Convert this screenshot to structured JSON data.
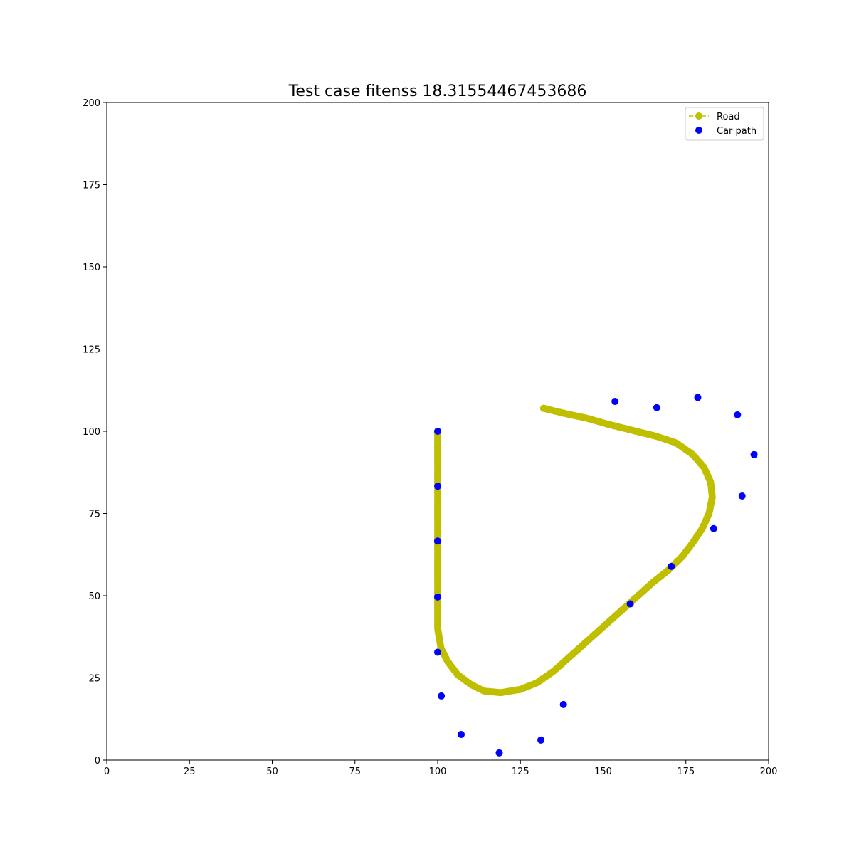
{
  "chart_data": {
    "type": "scatter",
    "title": "Test case fitenss 18.31554467453686",
    "xlabel": "",
    "ylabel": "",
    "xlim": [
      0,
      200
    ],
    "ylim": [
      0,
      200
    ],
    "xticks": [
      0,
      25,
      50,
      75,
      100,
      125,
      150,
      175,
      200
    ],
    "yticks": [
      0,
      25,
      50,
      75,
      100,
      125,
      150,
      175,
      200
    ],
    "grid": false,
    "legend_position": "upper right",
    "series": [
      {
        "name": "Road",
        "style": "dashed-line-with-markers",
        "color": "#bfbf00",
        "anchors": [
          [
            100,
            100
          ],
          [
            100,
            60
          ],
          [
            100,
            40
          ],
          [
            101,
            34
          ],
          [
            103,
            30
          ],
          [
            106,
            26
          ],
          [
            110,
            23
          ],
          [
            114,
            21
          ],
          [
            119,
            20.5
          ],
          [
            125,
            21.5
          ],
          [
            130,
            23.5
          ],
          [
            135,
            27
          ],
          [
            140,
            31.5
          ],
          [
            145,
            36
          ],
          [
            150,
            40.5
          ],
          [
            155,
            45
          ],
          [
            160,
            49.5
          ],
          [
            165,
            54
          ],
          [
            170,
            58
          ],
          [
            174,
            62
          ],
          [
            177,
            66
          ],
          [
            180,
            70.5
          ],
          [
            182,
            75
          ],
          [
            183,
            80
          ],
          [
            182.5,
            84.5
          ],
          [
            180.5,
            89
          ],
          [
            177,
            93
          ],
          [
            172,
            96.5
          ],
          [
            166,
            98.5
          ],
          [
            160,
            100
          ],
          [
            152,
            102
          ],
          [
            145,
            104
          ],
          [
            138,
            105.5
          ],
          [
            132,
            107
          ]
        ]
      },
      {
        "name": "Car path",
        "style": "markers",
        "color": "#0000ff",
        "points": [
          [
            100,
            100
          ],
          [
            100,
            83.3
          ],
          [
            100,
            66.6
          ],
          [
            100,
            49.6
          ],
          [
            100,
            32.8
          ],
          [
            101.1,
            19.5
          ],
          [
            107.1,
            7.8
          ],
          [
            118.6,
            2.2
          ],
          [
            131.2,
            6.1
          ],
          [
            138,
            16.9
          ],
          [
            158.2,
            47.5
          ],
          [
            170.6,
            58.9
          ],
          [
            183.4,
            70.4
          ],
          [
            192,
            80.3
          ],
          [
            195.6,
            92.9
          ],
          [
            190.6,
            105
          ],
          [
            178.6,
            110.3
          ],
          [
            166.2,
            107.2
          ],
          [
            153.6,
            109.1
          ]
        ]
      }
    ]
  }
}
